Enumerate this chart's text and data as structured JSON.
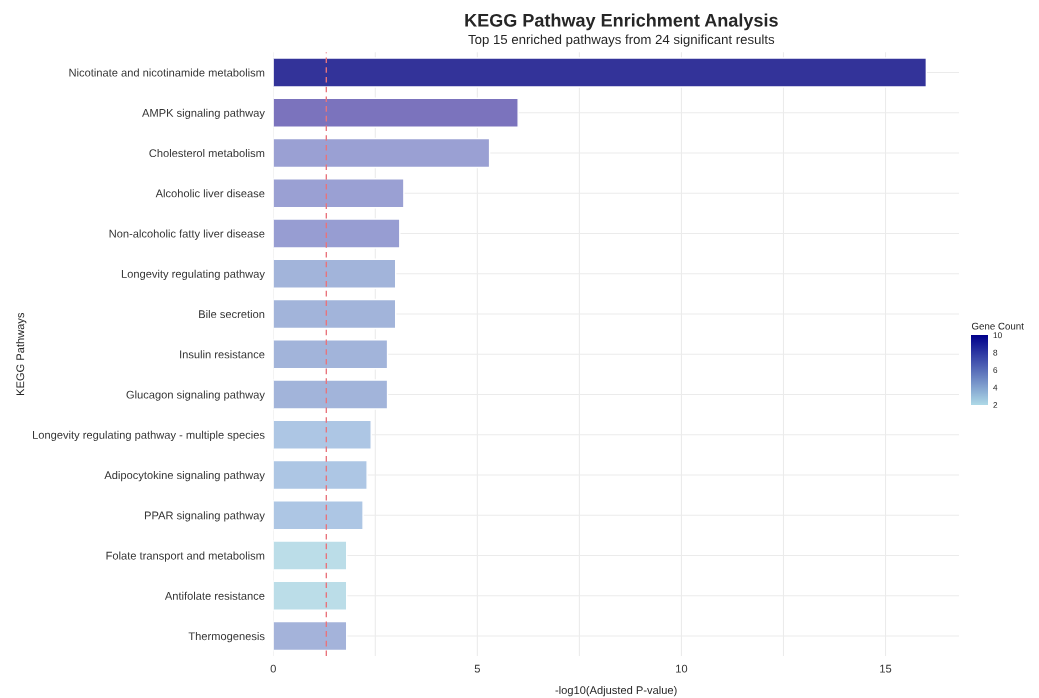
{
  "chart_data": {
    "type": "bar",
    "orientation": "horizontal",
    "title": "KEGG Pathway Enrichment Analysis",
    "subtitle": "Top 15 enriched pathways from 24 significant results",
    "xlabel": "-log10(Adjusted P-value)",
    "ylabel": "KEGG Pathways",
    "categories": [
      "Nicotinate and nicotinamide metabolism",
      "AMPK signaling pathway",
      "Cholesterol metabolism",
      "Alcoholic liver disease",
      "Non-alcoholic fatty liver disease",
      "Longevity regulating pathway",
      "Bile secretion",
      "Insulin resistance",
      "Glucagon signaling pathway",
      "Longevity regulating pathway - multiple species",
      "Adipocytokine signaling pathway",
      "PPAR signaling pathway",
      "Folate transport and metabolism",
      "Antifolate resistance",
      "Thermogenesis"
    ],
    "values": [
      16.0,
      6.0,
      5.3,
      3.2,
      3.1,
      3.0,
      3.0,
      2.8,
      2.8,
      2.4,
      2.3,
      2.2,
      1.8,
      1.8,
      1.8
    ],
    "colors": [
      "#333399",
      "#7b73bd",
      "#9aa0d3",
      "#9aa0d3",
      "#979dd2",
      "#a2b4da",
      "#a2b4da",
      "#a2b4da",
      "#a2b4da",
      "#adc6e4",
      "#adc6e4",
      "#adc6e4",
      "#bbdde8",
      "#bbdde8",
      "#a4b3da"
    ],
    "xlim": [
      0,
      16.8
    ],
    "xticks": [
      0,
      {
        "value": 2.5,
        "label": null
      },
      5,
      {
        "value": 7.5,
        "label": null
      },
      10,
      {
        "value": 12.5,
        "label": null
      },
      15
    ],
    "ref_lines": [
      {
        "axis": "x",
        "value": 1.3,
        "color": "#e8747c",
        "line_style": "dashed"
      }
    ],
    "clabel": "Gene Count",
    "clim": [
      2,
      10
    ],
    "cticks": [
      2,
      4,
      6,
      8,
      10
    ],
    "grid": true
  }
}
